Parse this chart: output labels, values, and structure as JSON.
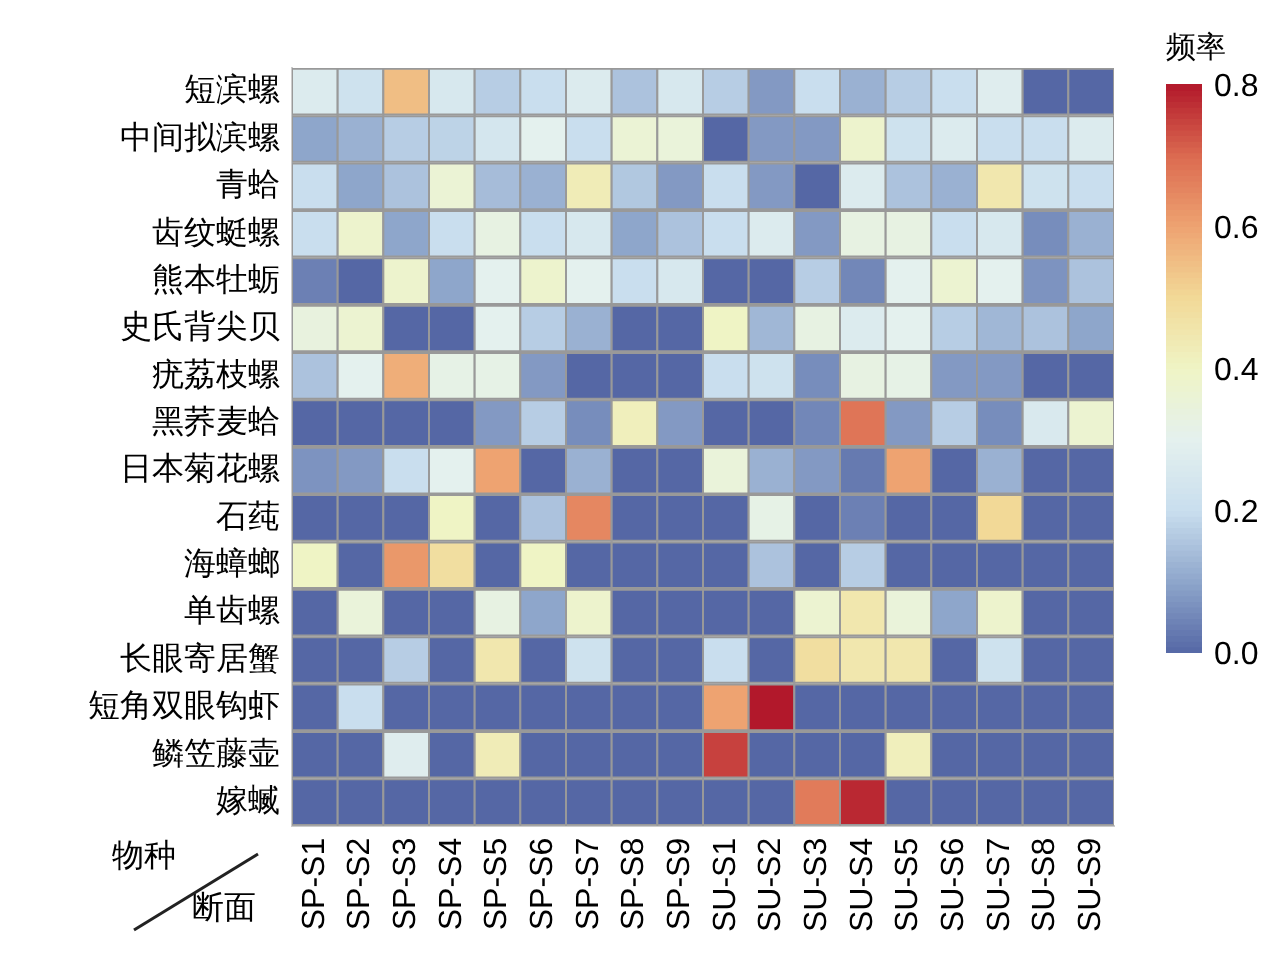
{
  "chart_data": {
    "type": "heatmap",
    "xlabel": "断面",
    "ylabel": "物种",
    "clabel": "频率",
    "categories": [
      "SP-S1",
      "SP-S2",
      "SP-S3",
      "SP-S4",
      "SP-S5",
      "SP-S6",
      "SP-S7",
      "SP-S8",
      "SP-S9",
      "SU-S1",
      "SU-S2",
      "SU-S3",
      "SU-S4",
      "SU-S5",
      "SU-S6",
      "SU-S7",
      "SU-S8",
      "SU-S9"
    ],
    "y_categories": [
      "短滨螺",
      "中间拟滨螺",
      "青蛤",
      "齿纹蜓螺",
      "熊本牡蛎",
      "史氏背尖贝",
      "疣荔枝螺",
      "黑荞麦蛤",
      "日本菊花螺",
      "石莼",
      "海蟑螂",
      "单齿螺",
      "长眼寄居蟹",
      "短角双眼钩虾",
      "鳞笠藤壶",
      "嫁蝛"
    ],
    "cells": [
      [
        0.27,
        0.22,
        0.55,
        0.25,
        0.17,
        0.2,
        0.27,
        0.15,
        0.25,
        0.17,
        0.08,
        0.2,
        0.12,
        0.17,
        0.2,
        0.28,
        0,
        0
      ],
      [
        0.1,
        0.12,
        0.17,
        0.18,
        0.24,
        0.3,
        0.2,
        0.36,
        0.35,
        0,
        0.08,
        0.08,
        0.38,
        0.22,
        0.27,
        0.2,
        0.2,
        0.27
      ],
      [
        0.2,
        0.1,
        0.15,
        0.36,
        0.14,
        0.12,
        0.43,
        0.16,
        0.08,
        0.2,
        0.08,
        0,
        0.27,
        0.15,
        0.12,
        0.45,
        0.22,
        0.2
      ],
      [
        0.2,
        0.38,
        0.1,
        0.2,
        0.33,
        0.2,
        0.25,
        0.1,
        0.15,
        0.2,
        0.27,
        0.08,
        0.33,
        0.33,
        0.2,
        0.25,
        0.06,
        0.12
      ],
      [
        0.04,
        0,
        0.38,
        0.1,
        0.3,
        0.38,
        0.3,
        0.2,
        0.25,
        0,
        0,
        0.17,
        0.05,
        0.3,
        0.37,
        0.3,
        0.07,
        0.15
      ],
      [
        0.34,
        0.37,
        0,
        0,
        0.3,
        0.17,
        0.12,
        0,
        0,
        0.4,
        0.13,
        0.33,
        0.27,
        0.3,
        0.17,
        0.13,
        0.15,
        0.1
      ],
      [
        0.15,
        0.3,
        0.58,
        0.32,
        0.32,
        0.08,
        0,
        0,
        0,
        0.2,
        0.22,
        0.06,
        0.33,
        0.32,
        0.08,
        0.08,
        0,
        0
      ],
      [
        0,
        0,
        0,
        0,
        0.08,
        0.17,
        0.06,
        0.42,
        0.08,
        0,
        0,
        0.05,
        0.68,
        0.08,
        0.17,
        0.06,
        0.26,
        0.37
      ],
      [
        0.07,
        0.08,
        0.2,
        0.3,
        0.6,
        0,
        0.12,
        0,
        0,
        0.35,
        0.12,
        0.08,
        0.03,
        0.6,
        0,
        0.12,
        0,
        0
      ],
      [
        0,
        0,
        0,
        0.4,
        0,
        0.15,
        0.65,
        0,
        0,
        0,
        0.32,
        0,
        0.04,
        0,
        0,
        0.5,
        0,
        0
      ],
      [
        0.4,
        0,
        0.62,
        0.48,
        0,
        0.4,
        0,
        0,
        0,
        0,
        0.15,
        0,
        0.17,
        0,
        0,
        0,
        0,
        0
      ],
      [
        0,
        0.35,
        0,
        0,
        0.33,
        0.1,
        0.38,
        0,
        0,
        0,
        0,
        0.37,
        0.45,
        0.35,
        0.1,
        0.38,
        0,
        0
      ],
      [
        0,
        0,
        0.17,
        0,
        0.45,
        0,
        0.22,
        0,
        0,
        0.2,
        0,
        0.48,
        0.45,
        0.45,
        0,
        0.22,
        0,
        0
      ],
      [
        0,
        0.2,
        0,
        0,
        0,
        0,
        0,
        0,
        0,
        0.6,
        0.8,
        0,
        0,
        0,
        0,
        0,
        0,
        0
      ],
      [
        0,
        0,
        0.28,
        0,
        0.43,
        0,
        0,
        0,
        0,
        0.75,
        0,
        0,
        0,
        0.42,
        0,
        0,
        0,
        0
      ],
      [
        0,
        0,
        0,
        0,
        0,
        0,
        0,
        0,
        0,
        0,
        0,
        0.67,
        0.78,
        0,
        0,
        0,
        0,
        0
      ]
    ],
    "clim": [
      0,
      0.8
    ],
    "cticks": [
      {
        "value": 0,
        "label": "0.0"
      },
      0.2,
      0.4,
      0.6,
      0.8
    ]
  }
}
